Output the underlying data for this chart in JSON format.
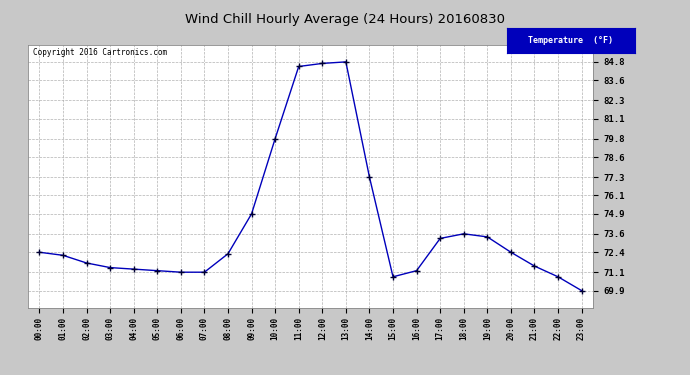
{
  "title": "Wind Chill Hourly Average (24 Hours) 20160830",
  "copyright": "Copyright 2016 Cartronics.com",
  "legend_label": "Temperature  (°F)",
  "hours": [
    "00:00",
    "01:00",
    "02:00",
    "03:00",
    "04:00",
    "05:00",
    "06:00",
    "07:00",
    "08:00",
    "09:00",
    "10:00",
    "11:00",
    "12:00",
    "13:00",
    "14:00",
    "15:00",
    "16:00",
    "17:00",
    "18:00",
    "19:00",
    "20:00",
    "21:00",
    "22:00",
    "23:00"
  ],
  "values": [
    72.4,
    72.2,
    71.7,
    71.4,
    71.3,
    71.2,
    71.1,
    71.1,
    72.3,
    74.9,
    79.8,
    84.5,
    84.7,
    84.8,
    77.3,
    70.8,
    71.2,
    73.3,
    73.6,
    73.4,
    72.4,
    71.5,
    70.8,
    69.9
  ],
  "ylim_min": 68.8,
  "ylim_max": 85.9,
  "yticks": [
    69.9,
    71.1,
    72.4,
    73.6,
    74.9,
    76.1,
    77.3,
    78.6,
    79.8,
    81.1,
    82.3,
    83.6,
    84.8
  ],
  "line_color": "#0000bb",
  "marker_color": "#000033",
  "bg_color": "#c8c8c8",
  "plot_bg_color": "#ffffff",
  "grid_color": "#aaaaaa",
  "title_color": "#000000",
  "legend_bg": "#0000bb",
  "legend_text_color": "#ffffff"
}
